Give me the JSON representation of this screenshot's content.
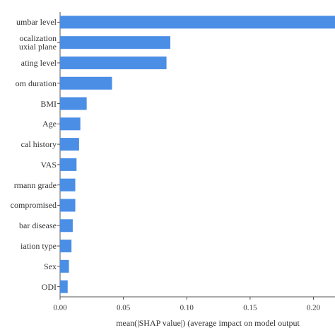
{
  "chart_data": {
    "type": "barh",
    "categories": [
      "umbar level",
      "ocalization\nuxial plane",
      "ating level",
      "om duration",
      "BMI",
      "Age",
      "cal history",
      "VAS",
      "rmann grade",
      "compromised",
      "bar disease",
      "iation type",
      "Sex",
      "ODI"
    ],
    "values": [
      0.22,
      0.087,
      0.084,
      0.041,
      0.021,
      0.016,
      0.015,
      0.013,
      0.012,
      0.012,
      0.01,
      0.009,
      0.007,
      0.006
    ],
    "color": "#4a8ee6",
    "xlabel": "mean(|SHAP value|) (average impact on model output",
    "xlim": [
      0,
      0.217
    ],
    "xticks": [
      {
        "value": 0,
        "label": "0.00"
      },
      {
        "value": 0.05,
        "label": "0.05"
      },
      {
        "value": 0.1,
        "label": "0.10"
      },
      {
        "value": 0.15,
        "label": "0.15"
      },
      {
        "value": 0.2,
        "label": "0.20"
      }
    ]
  }
}
